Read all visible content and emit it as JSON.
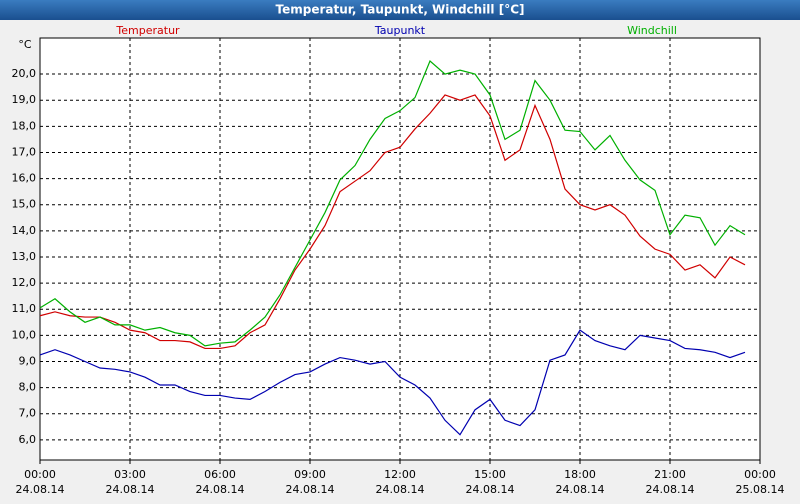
{
  "chart_data": {
    "type": "line",
    "title": "Temperatur, Taupunkt, Windchill [°C]",
    "y_unit": "°C",
    "x": [
      0,
      0.5,
      1,
      1.5,
      2,
      2.5,
      3,
      3.5,
      4,
      4.5,
      5,
      5.5,
      6,
      6.5,
      7,
      7.5,
      8,
      8.5,
      9,
      9.5,
      10,
      10.5,
      11,
      11.5,
      12,
      12.5,
      13,
      13.5,
      14,
      14.5,
      15,
      15.5,
      16,
      16.5,
      17,
      17.5,
      18,
      18.5,
      19,
      19.5,
      20,
      20.5,
      21,
      21.5,
      22,
      22.5,
      23,
      23.5
    ],
    "series": [
      {
        "name": "Temperatur",
        "color": "#d00000",
        "values": [
          10.75,
          10.9,
          10.75,
          10.7,
          10.7,
          10.5,
          10.2,
          10.1,
          9.8,
          9.8,
          9.75,
          9.5,
          9.5,
          9.6,
          10.1,
          10.4,
          11.4,
          12.5,
          13.3,
          14.2,
          15.5,
          15.9,
          16.3,
          17.0,
          17.2,
          17.9,
          18.5,
          19.2,
          19.0,
          19.2,
          18.4,
          16.7,
          17.1,
          18.8,
          17.5,
          15.6,
          15.0,
          14.8,
          15.0,
          14.6,
          13.8,
          13.3,
          13.1,
          12.5,
          12.7,
          12.2,
          13.0,
          12.7
        ]
      },
      {
        "name": "Taupunkt",
        "color": "#0000b0",
        "values": [
          9.25,
          9.45,
          9.25,
          9.0,
          8.75,
          8.7,
          8.6,
          8.4,
          8.1,
          8.1,
          7.85,
          7.7,
          7.7,
          7.6,
          7.55,
          7.85,
          8.2,
          8.5,
          8.6,
          8.9,
          9.15,
          9.05,
          8.9,
          9.0,
          8.4,
          8.1,
          7.6,
          6.75,
          6.2,
          7.15,
          7.55,
          6.75,
          6.55,
          7.15,
          9.05,
          9.25,
          10.2,
          9.8,
          9.6,
          9.45,
          10.0,
          9.9,
          9.8,
          9.5,
          9.45,
          9.35,
          9.15,
          9.35
        ]
      },
      {
        "name": "Windchill",
        "color": "#00b000",
        "values": [
          11.05,
          11.4,
          10.9,
          10.5,
          10.7,
          10.4,
          10.4,
          10.2,
          10.3,
          10.1,
          10.0,
          9.6,
          9.7,
          9.75,
          10.2,
          10.7,
          11.55,
          12.6,
          13.65,
          14.7,
          15.95,
          16.5,
          17.5,
          18.3,
          18.6,
          19.1,
          20.5,
          20.0,
          20.15,
          20.0,
          19.2,
          17.5,
          17.85,
          19.75,
          19.0,
          17.85,
          17.8,
          17.1,
          17.65,
          16.7,
          15.95,
          15.55,
          13.85,
          14.6,
          14.5,
          13.45,
          14.2,
          13.85
        ]
      }
    ],
    "xlim": [
      0,
      24
    ],
    "xticks": [
      {
        "value": 0,
        "label": "00:00"
      },
      {
        "value": 3,
        "label": "03:00"
      },
      {
        "value": 6,
        "label": "06:00"
      },
      {
        "value": 9,
        "label": "09:00"
      },
      {
        "value": 12,
        "label": "12:00"
      },
      {
        "value": 15,
        "label": "15:00"
      },
      {
        "value": 18,
        "label": "18:00"
      },
      {
        "value": 21,
        "label": "21:00"
      },
      {
        "value": 24,
        "label": "00:00"
      }
    ],
    "xtick_dates": [
      "24.08.14",
      "24.08.14",
      "24.08.14",
      "24.08.14",
      "24.08.14",
      "24.08.14",
      "24.08.14",
      "24.08.14",
      "25.08.14"
    ],
    "ylim": [
      5.23,
      21.38
    ],
    "yticks": [
      {
        "value": 6,
        "label": "6,0"
      },
      {
        "value": 7,
        "label": "7,0"
      },
      {
        "value": 8,
        "label": "8,0"
      },
      {
        "value": 9,
        "label": "9,0"
      },
      {
        "value": 10,
        "label": "10,0"
      },
      {
        "value": 11,
        "label": "11,0"
      },
      {
        "value": 12,
        "label": "12,0"
      },
      {
        "value": 13,
        "label": "13,0"
      },
      {
        "value": 14,
        "label": "14,0"
      },
      {
        "value": 15,
        "label": "15,0"
      },
      {
        "value": 16,
        "label": "16,0"
      },
      {
        "value": 17,
        "label": "17,0"
      },
      {
        "value": 18,
        "label": "18,0"
      },
      {
        "value": 19,
        "label": "19,0"
      },
      {
        "value": 20,
        "label": "20,0"
      }
    ],
    "grid": true
  }
}
